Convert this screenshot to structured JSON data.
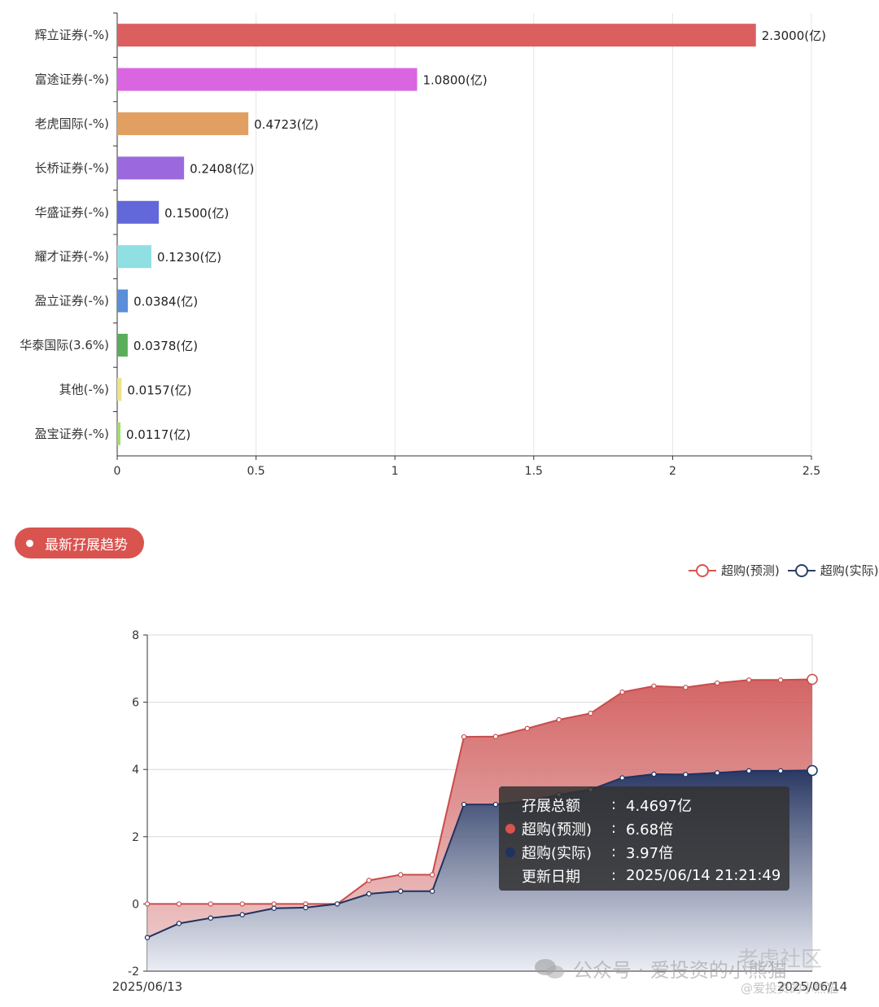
{
  "chart_data": [
    {
      "type": "bar",
      "orientation": "horizontal",
      "categories": [
        "辉立证券(-%)",
        "富途证券(-%)",
        "老虎国际(-%)",
        "长桥证券(-%)",
        "华盛证券(-%)",
        "耀才证券(-%)",
        "盈立证券(-%)",
        "华泰国际(3.6%)",
        "其他(-%)",
        "盈宝证券(-%)"
      ],
      "values": [
        2.3,
        1.08,
        0.4723,
        0.2408,
        0.15,
        0.123,
        0.0384,
        0.0378,
        0.0157,
        0.0117
      ],
      "value_labels": [
        "2.3000(亿)",
        "1.0800(亿)",
        "0.4723(亿)",
        "0.2408(亿)",
        "0.1500(亿)",
        "0.1230(亿)",
        "0.0384(亿)",
        "0.0378(亿)",
        "0.0157(亿)",
        "0.0117(亿)"
      ],
      "colors": [
        "#dc5f5f",
        "#d966e0",
        "#e1a062",
        "#9b69dd",
        "#6268d9",
        "#8fdfe3",
        "#5a8ed8",
        "#5aae5a",
        "#eee38a",
        "#a1dc6b"
      ],
      "xlim": [
        0,
        2.5
      ],
      "xticks": [
        "0",
        "0.5",
        "1",
        "1.5",
        "2",
        "2.5"
      ],
      "grid": "vertical"
    },
    {
      "type": "area",
      "x_first": "2025/06/13",
      "x_last": "2025/06/14",
      "ylim": [
        -2,
        8
      ],
      "yticks": [
        "-2",
        "0",
        "2",
        "4",
        "6",
        "8"
      ],
      "series": [
        {
          "name": "超购(预测)",
          "color": "#c94c4c",
          "values": [
            0,
            0,
            0,
            0,
            0,
            0,
            0,
            0.7,
            0.87,
            0.87,
            4.97,
            4.98,
            5.22,
            5.48,
            5.67,
            6.3,
            6.48,
            6.44,
            6.57,
            6.66,
            6.66,
            6.68
          ]
        },
        {
          "name": "超购(实际)",
          "color": "#1f3260",
          "values": [
            -1,
            -0.58,
            -0.42,
            -0.32,
            -0.13,
            -0.11,
            0,
            0.3,
            0.38,
            0.38,
            2.96,
            2.96,
            3.05,
            3.25,
            3.4,
            3.75,
            3.86,
            3.85,
            3.9,
            3.96,
            3.96,
            3.97
          ]
        }
      ],
      "grid": "horizontal",
      "legend_position": "top-right"
    }
  ],
  "section": {
    "title": "最新孖展趋势"
  },
  "legend": [
    {
      "label": "超购(预测)",
      "color": "#d9534f"
    },
    {
      "label": "超购(实际)",
      "color": "#2c3e66"
    }
  ],
  "tooltip": {
    "rows": [
      {
        "label": "孖展总额",
        "value": "4.4697亿",
        "dot": ""
      },
      {
        "label": "超购(预测)",
        "value": "6.68倍",
        "dot": "#d9534f"
      },
      {
        "label": "超购(实际)",
        "value": "3.97倍",
        "dot": "#1f3260"
      },
      {
        "label": "更新日期",
        "value": "2025/06/14 21:21:49",
        "dot": ""
      }
    ]
  },
  "watermark": {
    "text": "公众号 · 爱投资的小熊猫",
    "community": "老虎社区",
    "handle": "@爱投资的小熊猫"
  }
}
